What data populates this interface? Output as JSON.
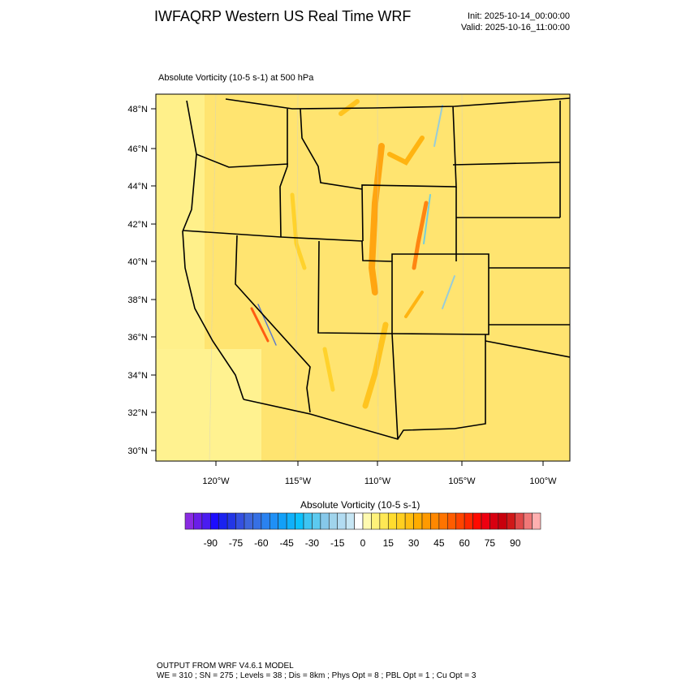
{
  "header": {
    "title": "IWFAQRP Western US Real Time WRF",
    "init": "Init: 2025-10-14_00:00:00",
    "valid": "Valid: 2025-10-16_11:00:00",
    "subtitle": "Absolute Vorticity   (10-5 s-1)     at   500 hPa"
  },
  "map": {
    "lat_labels": [
      "48°N",
      "46°N",
      "44°N",
      "42°N",
      "40°N",
      "38°N",
      "36°N",
      "34°N",
      "32°N",
      "30°N"
    ],
    "lon_labels": [
      "120°W",
      "115°W",
      "110°W",
      "105°W",
      "100°W"
    ],
    "background_color": "#ffe066"
  },
  "colorbar": {
    "title": "Absolute Vorticity  (10-5 s-1)",
    "labels": [
      "-90",
      "-75",
      "-60",
      "-45",
      "-30",
      "-15",
      "0",
      "15",
      "30",
      "45",
      "60",
      "75",
      "90"
    ],
    "colors": [
      "#8a2be2",
      "#6a1ee8",
      "#4a1cf0",
      "#1c0cff",
      "#1a22f0",
      "#2336e6",
      "#3450e0",
      "#3e66dc",
      "#3670e4",
      "#2a82f0",
      "#1f90f6",
      "#12a0f8",
      "#10b0fa",
      "#0cc0fc",
      "#3ec4f2",
      "#5ccaf0",
      "#86c8ea",
      "#a0d4ec",
      "#b2dcf2",
      "#c6e6f4",
      "#ffffff",
      "#fffab0",
      "#fff27a",
      "#ffe855",
      "#ffdc2e",
      "#ffcf20",
      "#ffbe10",
      "#ffac00",
      "#ff9a00",
      "#ff8800",
      "#ff7400",
      "#ff5c00",
      "#ff4400",
      "#ff2800",
      "#ff0a00",
      "#ee0010",
      "#d80010",
      "#c8000c",
      "#d01818",
      "#e04848",
      "#f07878",
      "#ffb0b0"
    ]
  },
  "footer": {
    "line1": "OUTPUT FROM WRF V4.6.1 MODEL",
    "line2": "WE = 310 ; SN = 275 ; Levels = 38 ; Dis = 8km ; Phys Opt = 8 ; PBL Opt = 1 ; Cu Opt = 3"
  }
}
